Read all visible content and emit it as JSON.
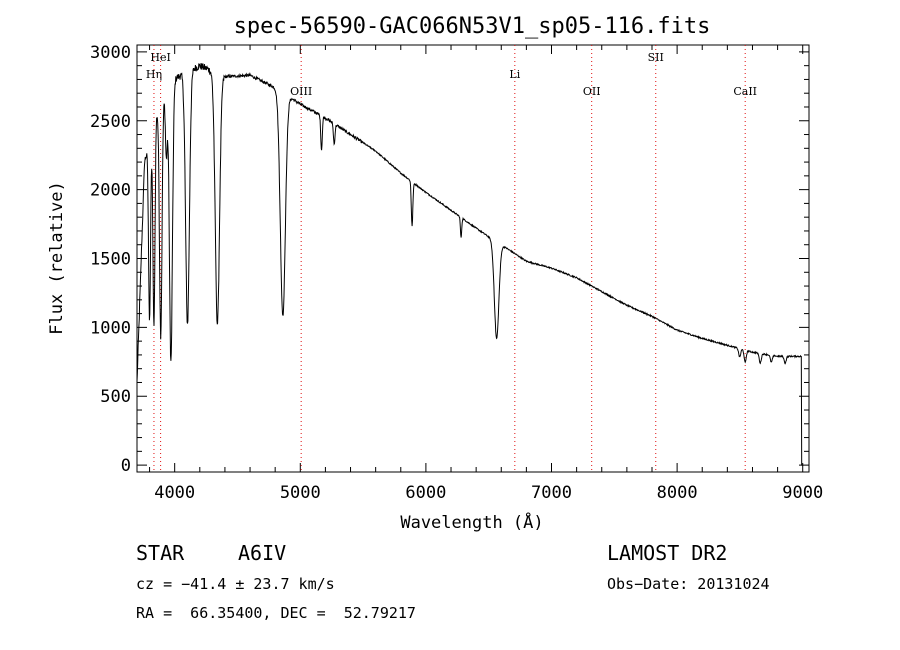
{
  "chart_data": {
    "type": "line",
    "title": "spec-56590-GAC066N53V1_sp05-116.fits",
    "xlabel": "Wavelength (Å)",
    "ylabel": "Flux (relative)",
    "xlim": [
      3700,
      9050
    ],
    "ylim": [
      -50,
      3050
    ],
    "xticks": [
      4000,
      5000,
      6000,
      7000,
      8000,
      9000
    ],
    "yticks": [
      0,
      500,
      1000,
      1500,
      2000,
      2500,
      3000
    ],
    "grid": false,
    "spectral_lines": [
      {
        "name": "HeI",
        "wavelength": 3888
      },
      {
        "name": "Hη",
        "wavelength": 3835
      },
      {
        "name": "OIII",
        "wavelength": 5007
      },
      {
        "name": "Li",
        "wavelength": 6708
      },
      {
        "name": "OII",
        "wavelength": 7320
      },
      {
        "name": "SII",
        "wavelength": 7830
      },
      {
        "name": "CaII",
        "wavelength": 8542
      }
    ],
    "series": [
      {
        "continuum": [
          [
            3700,
            600
          ],
          [
            3760,
            2200
          ],
          [
            3850,
            2550
          ],
          [
            3950,
            2780
          ],
          [
            4050,
            2830
          ],
          [
            4200,
            2900
          ],
          [
            4400,
            2820
          ],
          [
            4600,
            2830
          ],
          [
            4800,
            2740
          ],
          [
            5000,
            2620
          ],
          [
            5200,
            2520
          ],
          [
            5400,
            2400
          ],
          [
            5600,
            2280
          ],
          [
            5800,
            2120
          ],
          [
            6000,
            1980
          ],
          [
            6200,
            1850
          ],
          [
            6400,
            1720
          ],
          [
            6560,
            1620
          ],
          [
            6600,
            1600
          ],
          [
            6800,
            1480
          ],
          [
            7000,
            1430
          ],
          [
            7200,
            1360
          ],
          [
            7400,
            1260
          ],
          [
            7600,
            1160
          ],
          [
            7800,
            1080
          ],
          [
            8000,
            980
          ],
          [
            8200,
            920
          ],
          [
            8400,
            870
          ],
          [
            8600,
            820
          ],
          [
            8800,
            790
          ],
          [
            8980,
            790
          ]
        ],
        "absorption_lines": [
          {
            "center": 3800,
            "depth": 1300,
            "width": 8
          },
          {
            "center": 3835,
            "depth": 1500,
            "width": 8
          },
          {
            "center": 3889,
            "depth": 1700,
            "width": 10
          },
          {
            "center": 3934,
            "depth": 500,
            "width": 8
          },
          {
            "center": 3970,
            "depth": 2050,
            "width": 12
          },
          {
            "center": 4102,
            "depth": 1830,
            "width": 15
          },
          {
            "center": 4340,
            "depth": 1820,
            "width": 17
          },
          {
            "center": 4861,
            "depth": 1620,
            "width": 20
          },
          {
            "center": 5169,
            "depth": 250,
            "width": 6
          },
          {
            "center": 5270,
            "depth": 150,
            "width": 6
          },
          {
            "center": 5890,
            "depth": 320,
            "width": 6
          },
          {
            "center": 6280,
            "depth": 150,
            "width": 5
          },
          {
            "center": 6563,
            "depth": 700,
            "width": 18
          },
          {
            "center": 8498,
            "depth": 60,
            "width": 8
          },
          {
            "center": 8542,
            "depth": 90,
            "width": 8
          },
          {
            "center": 8662,
            "depth": 70,
            "width": 8
          },
          {
            "center": 8750,
            "depth": 50,
            "width": 8
          },
          {
            "center": 8860,
            "depth": 50,
            "width": 8
          }
        ],
        "end_dropoff": {
          "from": 8990,
          "to": 9005,
          "value": 0
        }
      }
    ]
  },
  "info": {
    "object_type": "STAR",
    "subclass": "A6IV",
    "survey": "LAMOST DR2",
    "velocity": "cz = −41.4 ± 23.7 km/s",
    "obs_date": "Obs−Date: 20131024",
    "coords": "RA =  66.35400, DEC =  52.79217"
  }
}
